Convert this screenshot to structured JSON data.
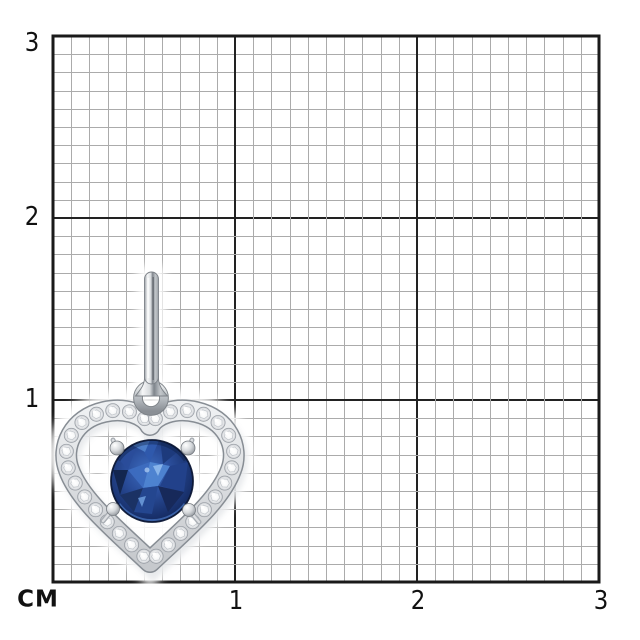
{
  "scene": {
    "kind": "product-size-reference-photo",
    "subject": "heart-shaped white-metal pendant with pave stones and round blue center stone on centimeter grid"
  },
  "ruler": {
    "unit_label": "СМ",
    "left_axis_labels": [
      "3",
      "2",
      "1"
    ],
    "bottom_axis_labels": [
      "1",
      "2",
      "3"
    ]
  },
  "grid": {
    "cm_count": 3,
    "minor_per_cm": 10,
    "minor_color": "#ababab",
    "major_color": "#222222",
    "border_color": "#1a1a1a",
    "background_color": "#ffffff"
  },
  "pendant": {
    "metal_light": "#f6f7f8",
    "metal_mid": "#d7dadd",
    "metal_dark": "#878d94",
    "diamond_color": "#f5f6f7",
    "sapphire_dark": "#0b1838",
    "sapphire_deep": "#18306b",
    "sapphire_mid": "#2a4d9a",
    "sapphire_bright": "#3d6dc0",
    "sapphire_light": "#8fb9ec"
  }
}
